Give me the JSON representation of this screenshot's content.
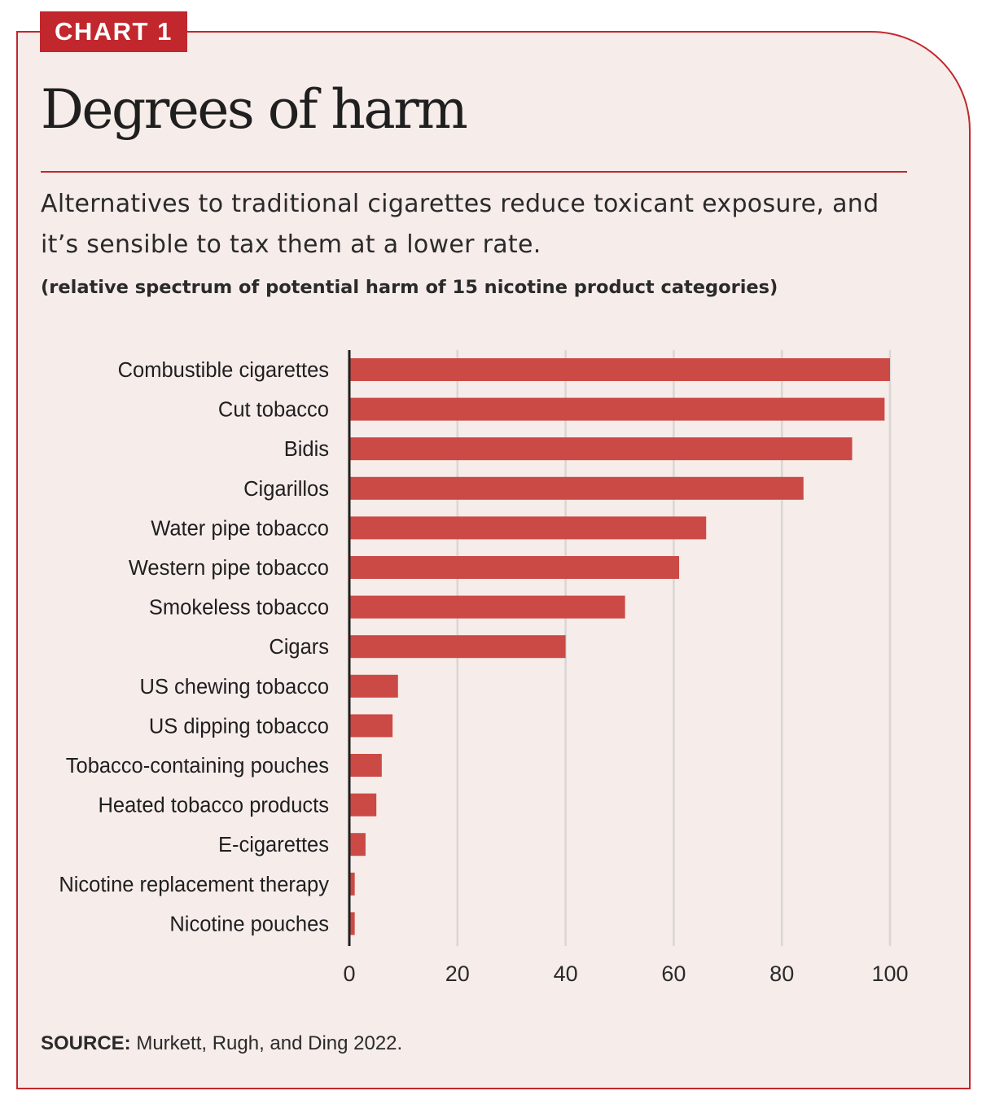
{
  "tag": "CHART 1",
  "title": "Degrees of harm",
  "subtitle": "Alternatives to traditional cigarettes reduce toxicant exposure, and it’s sensible to tax them at a lower rate.",
  "note": "(relative spectrum of potential harm of 15 nicotine product categories)",
  "source": {
    "label": "SOURCE:",
    "text": " Murkett, Rugh, and Ding 2022."
  },
  "colors": {
    "accent": "#c1272d",
    "bar": "#cb4a45",
    "background": "#f6ecea",
    "grid": "#d9d6d4"
  },
  "chart_data": {
    "type": "bar",
    "orientation": "horizontal",
    "categories": [
      "Combustible cigarettes",
      "Cut tobacco",
      "Bidis",
      "Cigarillos",
      "Water pipe tobacco",
      "Western pipe tobacco",
      "Smokeless tobacco",
      "Cigars",
      "US chewing tobacco",
      "US dipping tobacco",
      "Tobacco-containing pouches",
      "Heated tobacco products",
      "E-cigarettes",
      "Nicotine replacement therapy",
      "Nicotine pouches"
    ],
    "values": [
      100,
      99,
      93,
      84,
      66,
      61,
      51,
      40,
      9,
      8,
      6,
      5,
      3,
      1,
      1
    ],
    "xlim": [
      0,
      100
    ],
    "xticks": [
      0,
      20,
      40,
      60,
      80,
      100
    ],
    "grid": "vertical",
    "legend": "none"
  }
}
